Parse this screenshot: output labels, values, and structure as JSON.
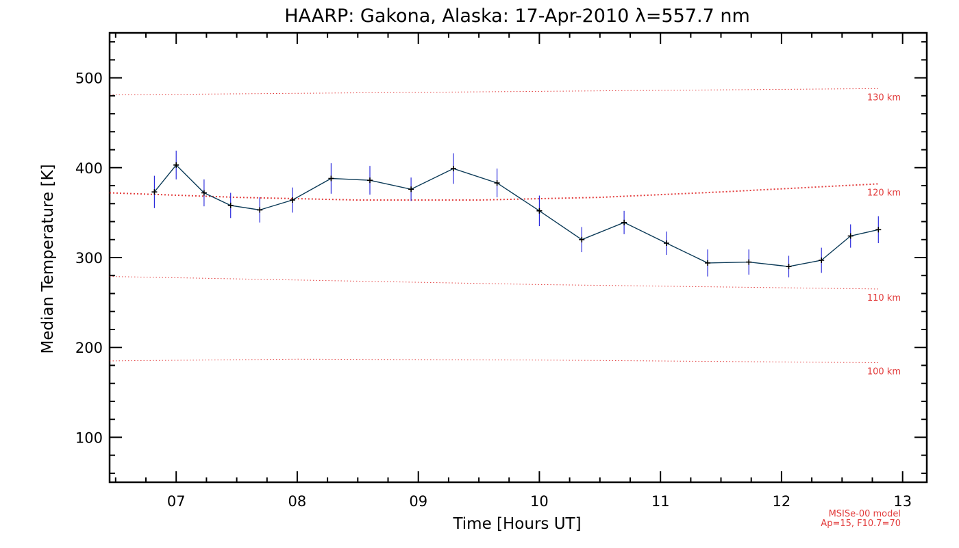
{
  "chart_data": {
    "type": "line",
    "title": "HAARP: Gakona,  Alaska: 17-Apr-2010 λ=557.7 nm",
    "xlabel": "Time [Hours UT]",
    "ylabel": "Median Temperature [K]",
    "xlim": [
      6.45,
      13.2
    ],
    "ylim": [
      50,
      550
    ],
    "xticks": [
      {
        "value": 7,
        "label": "07"
      },
      {
        "value": 8,
        "label": "08"
      },
      {
        "value": 9,
        "label": "09"
      },
      {
        "value": 10,
        "label": "10"
      },
      {
        "value": 11,
        "label": "11"
      },
      {
        "value": 12,
        "label": "12"
      },
      {
        "value": 13,
        "label": "13"
      }
    ],
    "yticks": [
      {
        "value": 100,
        "label": "100"
      },
      {
        "value": 200,
        "label": "200"
      },
      {
        "value": 300,
        "label": "300"
      },
      {
        "value": 400,
        "label": "400"
      },
      {
        "value": 500,
        "label": "500"
      }
    ],
    "series": [
      {
        "color": "#0b3a57",
        "error_color": "#2b2bdc",
        "x": [
          6.82,
          7.0,
          7.23,
          7.45,
          7.69,
          7.96,
          8.28,
          8.6,
          8.94,
          9.29,
          9.65,
          10.0,
          10.35,
          10.7,
          11.05,
          11.39,
          11.73,
          12.06,
          12.33,
          12.57,
          12.8
        ],
        "y": [
          373,
          403,
          372,
          358,
          353,
          364,
          388,
          386,
          376,
          399,
          383,
          352,
          320,
          339,
          316,
          294,
          295,
          290,
          297,
          324,
          331
        ],
        "err": [
          18,
          16,
          15,
          14,
          14,
          14,
          17,
          16,
          13,
          17,
          16,
          17,
          14,
          13,
          13,
          15,
          14,
          12,
          14,
          13,
          15
        ]
      }
    ],
    "model_lines": [
      {
        "label": "130 km",
        "x": [
          6.45,
          12.8
        ],
        "y": [
          481,
          488
        ],
        "color": "#e23b3b"
      },
      {
        "label": "120 km",
        "x": [
          6.45,
          7.5,
          8.5,
          9.5,
          10.5,
          11.5,
          12.8
        ],
        "y": [
          372,
          367,
          364,
          364,
          367,
          373,
          382
        ],
        "color": "#e23b3b"
      },
      {
        "label": "110 km",
        "x": [
          6.45,
          8.0,
          10.0,
          12.8
        ],
        "y": [
          279,
          275,
          270,
          265
        ],
        "color": "#e23b3b"
      },
      {
        "label": "100 km",
        "x": [
          6.45,
          8.0,
          10.0,
          12.8
        ],
        "y": [
          185,
          187,
          186,
          183
        ],
        "color": "#e23b3b"
      }
    ],
    "notes": [
      "MSISe-00 model",
      "Ap=15, F10.7=70"
    ],
    "grid": false,
    "legend": "none"
  }
}
